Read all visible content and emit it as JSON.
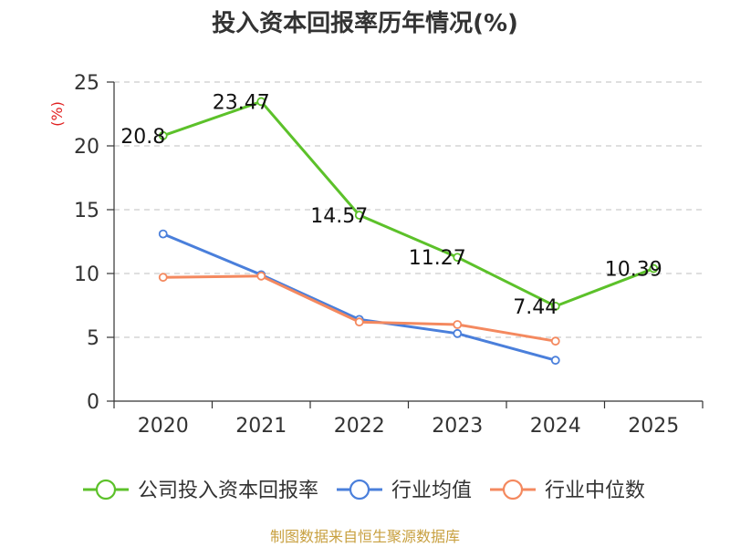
{
  "chart_data": {
    "type": "line",
    "title": "投入资本回报率历年情况(%)",
    "ylabel": "(%)",
    "xlabel": "",
    "ylim": [
      0,
      25
    ],
    "yticks": [
      0,
      5,
      10,
      15,
      20,
      25
    ],
    "categories": [
      "2020",
      "2021",
      "2022",
      "2023",
      "2024",
      "2025"
    ],
    "grid": true,
    "legend_position": "bottom",
    "series": [
      {
        "name": "公司投入资本回报率",
        "color": "#5cc12a",
        "values": [
          20.8,
          23.47,
          14.57,
          11.27,
          7.44,
          10.39
        ],
        "labels": [
          "20.8",
          "23.47",
          "14.57",
          "11.27",
          "7.44",
          "10.39"
        ]
      },
      {
        "name": "行业均值",
        "color": "#4a7fdb",
        "values": [
          13.1,
          9.9,
          6.4,
          5.3,
          3.2,
          null
        ]
      },
      {
        "name": "行业中位数",
        "color": "#f4895f",
        "values": [
          9.7,
          9.8,
          6.2,
          6.0,
          4.7,
          null
        ]
      }
    ],
    "source": "制图数据来自恒生聚源数据库"
  }
}
